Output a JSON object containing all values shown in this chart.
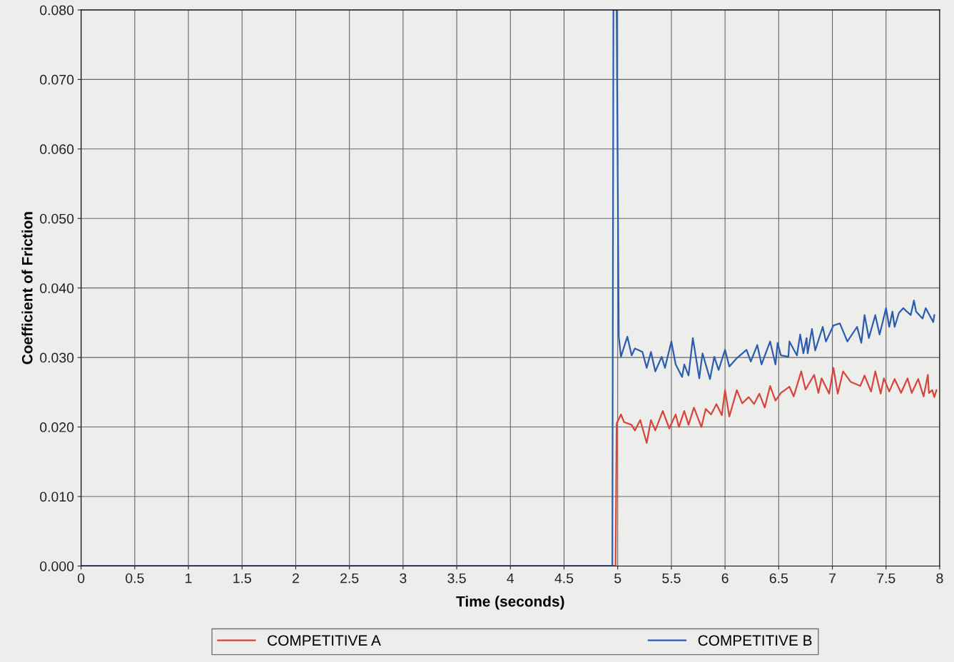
{
  "chart_data": {
    "type": "line",
    "xlabel": "Time (seconds)",
    "ylabel": "Coefficient of Friction",
    "xlim": [
      0,
      8
    ],
    "ylim": [
      0,
      0.08
    ],
    "xticks": [
      0,
      0.5,
      1,
      1.5,
      2,
      2.5,
      3,
      3.5,
      4,
      4.5,
      5,
      5.5,
      6,
      6.5,
      7,
      7.5,
      8
    ],
    "yticks": [
      {
        "value": 0,
        "label": "0.000"
      },
      {
        "value": 0.01,
        "label": "0.010"
      },
      {
        "value": 0.02,
        "label": "0.020"
      },
      {
        "value": 0.03,
        "label": "0.030"
      },
      {
        "value": 0.04,
        "label": "0.040"
      },
      {
        "value": 0.05,
        "label": "0.050"
      },
      {
        "value": 0.06,
        "label": "0.060"
      },
      {
        "value": 0.07,
        "label": "0.070"
      },
      {
        "value": 0.08,
        "label": "0.080"
      }
    ],
    "grid": true,
    "legend": "bottom",
    "marker": "none",
    "line_style": "solid",
    "series": [
      {
        "name": "COMPETITIVE A",
        "color": "#d9443a",
        "x": [
          0,
          4.98,
          4.99,
          5.03,
          5.06,
          5.13,
          5.16,
          5.21,
          5.27,
          5.31,
          5.35,
          5.42,
          5.48,
          5.54,
          5.57,
          5.62,
          5.66,
          5.71,
          5.78,
          5.82,
          5.87,
          5.92,
          5.97,
          6.0,
          6.04,
          6.11,
          6.16,
          6.22,
          6.27,
          6.32,
          6.37,
          6.42,
          6.47,
          6.52,
          6.6,
          6.64,
          6.71,
          6.75,
          6.83,
          6.87,
          6.9,
          6.97,
          7.01,
          7.05,
          7.1,
          7.17,
          7.26,
          7.3,
          7.36,
          7.4,
          7.45,
          7.48,
          7.53,
          7.58,
          7.64,
          7.7,
          7.74,
          7.8,
          7.85,
          7.89,
          7.9,
          7.93,
          7.95,
          7.97
        ],
        "values": [
          0,
          0,
          0.0205,
          0.0218,
          0.0207,
          0.0203,
          0.0195,
          0.021,
          0.0177,
          0.021,
          0.0195,
          0.0223,
          0.0198,
          0.0218,
          0.02,
          0.0223,
          0.0203,
          0.0228,
          0.02,
          0.0226,
          0.0218,
          0.0233,
          0.0217,
          0.0253,
          0.0215,
          0.0253,
          0.0234,
          0.0243,
          0.0233,
          0.0248,
          0.0228,
          0.0259,
          0.0238,
          0.0249,
          0.0258,
          0.0244,
          0.028,
          0.0254,
          0.0275,
          0.0249,
          0.027,
          0.0248,
          0.0285,
          0.0248,
          0.028,
          0.0265,
          0.0259,
          0.0274,
          0.0251,
          0.028,
          0.0248,
          0.027,
          0.0251,
          0.0269,
          0.0249,
          0.027,
          0.0249,
          0.0269,
          0.0244,
          0.0275,
          0.0249,
          0.0253,
          0.0243,
          0.0253
        ]
      },
      {
        "name": "COMPETITIVE B",
        "color": "#2a5db0",
        "x": [
          0,
          4.95,
          4.96,
          4.99,
          5.01,
          5.03,
          5.09,
          5.13,
          5.16,
          5.23,
          5.27,
          5.31,
          5.35,
          5.41,
          5.44,
          5.5,
          5.54,
          5.6,
          5.62,
          5.66,
          5.7,
          5.76,
          5.79,
          5.86,
          5.9,
          5.94,
          6.0,
          6.04,
          6.11,
          6.2,
          6.24,
          6.3,
          6.34,
          6.42,
          6.47,
          6.49,
          6.52,
          6.59,
          6.6,
          6.67,
          6.7,
          6.73,
          6.76,
          6.77,
          6.81,
          6.84,
          6.91,
          6.94,
          7.01,
          7.07,
          7.14,
          7.23,
          7.27,
          7.3,
          7.34,
          7.4,
          7.44,
          7.5,
          7.53,
          7.56,
          7.58,
          7.62,
          7.66,
          7.73,
          7.76,
          7.78,
          7.84,
          7.87,
          7.94,
          7.95
        ],
        "values": [
          0,
          0,
          0.08,
          0.08,
          0.033,
          0.0301,
          0.033,
          0.0303,
          0.0313,
          0.0308,
          0.0285,
          0.0308,
          0.028,
          0.0301,
          0.0285,
          0.0323,
          0.029,
          0.0272,
          0.029,
          0.0274,
          0.0328,
          0.027,
          0.0306,
          0.0269,
          0.0301,
          0.0282,
          0.0311,
          0.0287,
          0.0299,
          0.0311,
          0.0294,
          0.0318,
          0.029,
          0.0323,
          0.029,
          0.0321,
          0.0303,
          0.0301,
          0.0323,
          0.0303,
          0.0333,
          0.0306,
          0.0328,
          0.0306,
          0.0341,
          0.031,
          0.0344,
          0.0323,
          0.0346,
          0.0349,
          0.0323,
          0.0344,
          0.0321,
          0.0361,
          0.0328,
          0.0361,
          0.0333,
          0.0371,
          0.0344,
          0.0366,
          0.0344,
          0.0364,
          0.0371,
          0.0361,
          0.0382,
          0.0366,
          0.0356,
          0.0371,
          0.0351,
          0.0361
        ]
      }
    ]
  }
}
